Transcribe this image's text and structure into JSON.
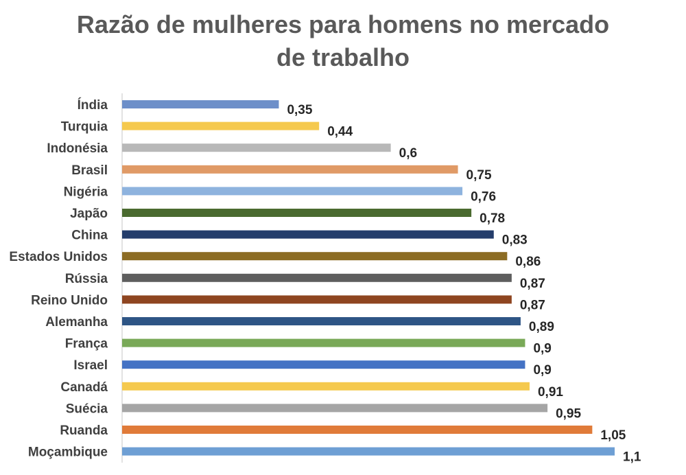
{
  "chart_data": {
    "type": "bar",
    "orientation": "horizontal",
    "title": [
      "Razão de mulheres para homens no mercado",
      "de trabalho"
    ],
    "categories": [
      "Índia",
      "Turquia",
      "Indonésia",
      "Brasil",
      "Nigéria",
      "Japão",
      "China",
      "Estados Unidos",
      "Rússia",
      "Reino Unido",
      "Alemanha",
      "França",
      "Israel",
      "Canadá",
      "Suécia",
      "Ruanda",
      "Moçambique"
    ],
    "values": [
      0.35,
      0.44,
      0.6,
      0.75,
      0.76,
      0.78,
      0.83,
      0.86,
      0.87,
      0.87,
      0.89,
      0.9,
      0.9,
      0.91,
      0.95,
      1.05,
      1.1
    ],
    "value_labels": [
      "0,35",
      "0,44",
      "0,6",
      "0,75",
      "0,76",
      "0,78",
      "0,83",
      "0,86",
      "0,87",
      "0,87",
      "0,89",
      "0,9",
      "0,9",
      "0,91",
      "0,95",
      "1,05",
      "1,1"
    ],
    "colors": [
      "#6d8fc9",
      "#f5c94e",
      "#b8b8b8",
      "#e09a66",
      "#8eb3de",
      "#4a6a2f",
      "#243d6b",
      "#8c6c24",
      "#5e5e5e",
      "#8e4520",
      "#2e5585",
      "#79a958",
      "#4472c4",
      "#f5c94e",
      "#a5a5a5",
      "#e07b39",
      "#6e9fd4"
    ],
    "xlim": [
      0,
      1.1
    ],
    "grid": false,
    "legend": "none"
  }
}
